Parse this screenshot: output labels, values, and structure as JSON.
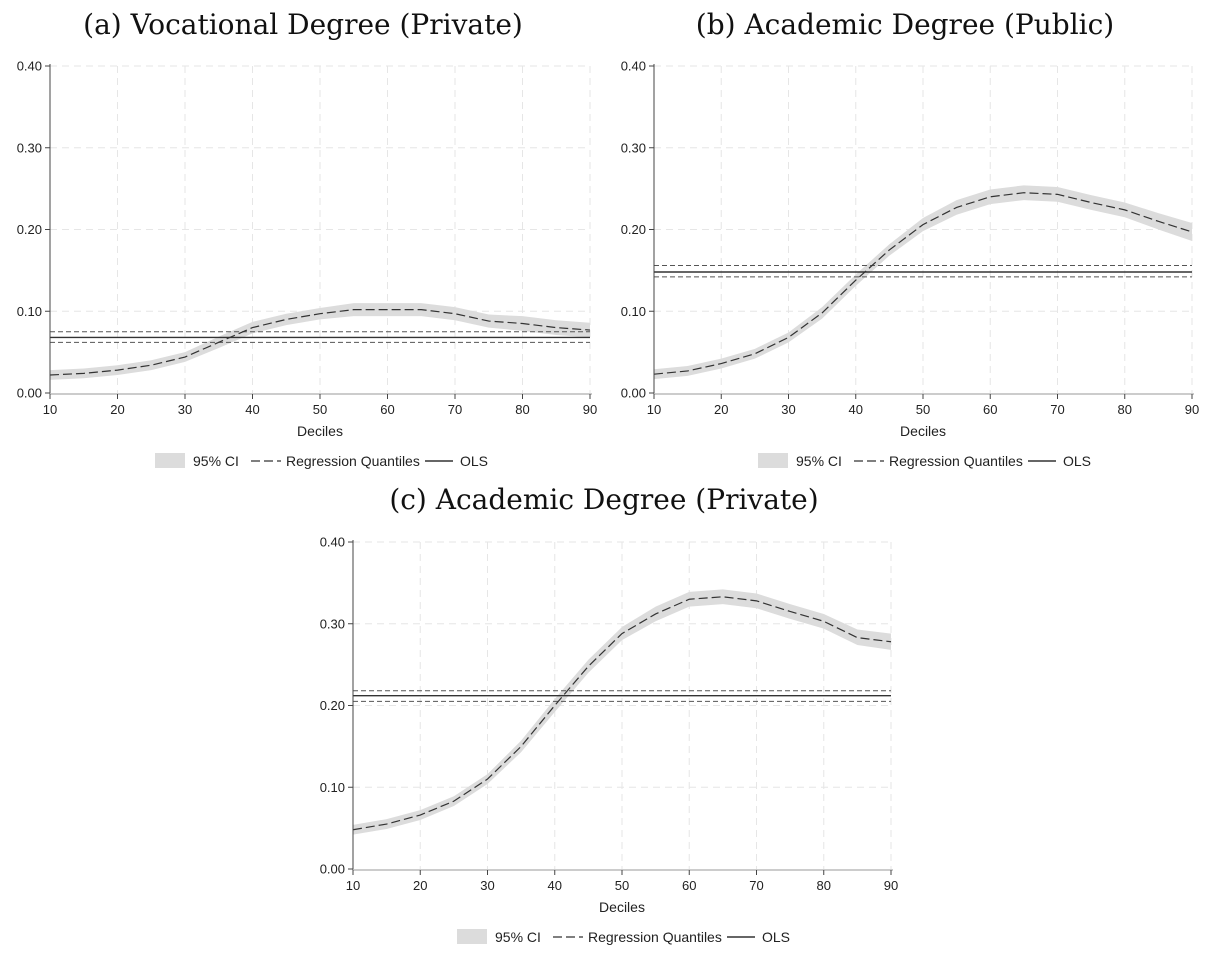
{
  "chart_data": [
    {
      "type": "line",
      "title": "(a) Vocational Degree (Private)",
      "xlabel": "Deciles",
      "ylabel": "",
      "xlim": [
        10,
        90
      ],
      "ylim": [
        0,
        0.4
      ],
      "xticks": [
        "10",
        "20",
        "30",
        "40",
        "50",
        "60",
        "70",
        "80",
        "90"
      ],
      "yticks": [
        "0.00",
        "0.10",
        "0.20",
        "0.30",
        "0.40"
      ],
      "grid": true,
      "legend": {
        "placement": "bottom",
        "entries": [
          "95% CI",
          "Regression Quantiles",
          "OLS"
        ]
      },
      "x": [
        10,
        15,
        20,
        25,
        30,
        35,
        40,
        45,
        50,
        55,
        60,
        65,
        70,
        75,
        80,
        85,
        90
      ],
      "series": [
        {
          "name": "Regression Quantiles",
          "values": [
            0.022,
            0.024,
            0.028,
            0.034,
            0.044,
            0.062,
            0.08,
            0.09,
            0.097,
            0.102,
            0.102,
            0.102,
            0.097,
            0.088,
            0.085,
            0.08,
            0.077
          ],
          "ci_low": [
            0.016,
            0.018,
            0.022,
            0.028,
            0.038,
            0.055,
            0.073,
            0.083,
            0.09,
            0.094,
            0.094,
            0.094,
            0.089,
            0.08,
            0.076,
            0.071,
            0.068
          ],
          "ci_high": [
            0.028,
            0.03,
            0.034,
            0.04,
            0.05,
            0.069,
            0.087,
            0.097,
            0.104,
            0.11,
            0.11,
            0.11,
            0.105,
            0.096,
            0.094,
            0.089,
            0.086
          ]
        },
        {
          "name": "OLS",
          "value": 0.068,
          "ci": [
            0.062,
            0.075
          ]
        }
      ]
    },
    {
      "type": "line",
      "title": "(b) Academic Degree (Public)",
      "xlabel": "Deciles",
      "ylabel": "",
      "xlim": [
        10,
        90
      ],
      "ylim": [
        0,
        0.4
      ],
      "xticks": [
        "10",
        "20",
        "30",
        "40",
        "50",
        "60",
        "70",
        "80",
        "90"
      ],
      "yticks": [
        "0.00",
        "0.10",
        "0.20",
        "0.30",
        "0.40"
      ],
      "grid": true,
      "legend": {
        "placement": "bottom",
        "entries": [
          "95% CI",
          "Regression Quantiles",
          "OLS"
        ]
      },
      "x": [
        10,
        15,
        20,
        25,
        30,
        35,
        40,
        45,
        50,
        55,
        60,
        65,
        70,
        75,
        80,
        85,
        90
      ],
      "series": [
        {
          "name": "Regression Quantiles",
          "values": [
            0.023,
            0.027,
            0.036,
            0.048,
            0.068,
            0.098,
            0.138,
            0.175,
            0.206,
            0.227,
            0.24,
            0.245,
            0.243,
            0.233,
            0.224,
            0.21,
            0.197
          ],
          "ci_low": [
            0.017,
            0.021,
            0.03,
            0.042,
            0.062,
            0.091,
            0.131,
            0.168,
            0.198,
            0.218,
            0.231,
            0.236,
            0.234,
            0.224,
            0.215,
            0.2,
            0.186
          ],
          "ci_high": [
            0.029,
            0.033,
            0.042,
            0.054,
            0.074,
            0.105,
            0.145,
            0.182,
            0.214,
            0.236,
            0.249,
            0.254,
            0.252,
            0.242,
            0.233,
            0.22,
            0.208
          ]
        },
        {
          "name": "OLS",
          "value": 0.148,
          "ci": [
            0.142,
            0.156
          ]
        }
      ]
    },
    {
      "type": "line",
      "title": "(c) Academic Degree (Private)",
      "xlabel": "Deciles",
      "ylabel": "",
      "xlim": [
        10,
        90
      ],
      "ylim": [
        0,
        0.4
      ],
      "xticks": [
        "10",
        "20",
        "30",
        "40",
        "50",
        "60",
        "70",
        "80",
        "90"
      ],
      "yticks": [
        "0.00",
        "0.10",
        "0.20",
        "0.30",
        "0.40"
      ],
      "grid": true,
      "legend": {
        "placement": "bottom",
        "entries": [
          "95% CI",
          "Regression Quantiles",
          "OLS"
        ]
      },
      "x": [
        10,
        15,
        20,
        25,
        30,
        35,
        40,
        45,
        50,
        55,
        60,
        65,
        70,
        75,
        80,
        85,
        90
      ],
      "series": [
        {
          "name": "Regression Quantiles",
          "values": [
            0.048,
            0.055,
            0.066,
            0.083,
            0.11,
            0.15,
            0.2,
            0.248,
            0.288,
            0.312,
            0.33,
            0.333,
            0.328,
            0.315,
            0.303,
            0.283,
            0.278
          ],
          "ci_low": [
            0.042,
            0.049,
            0.06,
            0.077,
            0.104,
            0.143,
            0.192,
            0.24,
            0.28,
            0.303,
            0.321,
            0.324,
            0.319,
            0.306,
            0.294,
            0.274,
            0.268
          ],
          "ci_high": [
            0.054,
            0.061,
            0.072,
            0.089,
            0.116,
            0.157,
            0.208,
            0.256,
            0.296,
            0.321,
            0.339,
            0.342,
            0.337,
            0.324,
            0.312,
            0.293,
            0.288
          ]
        },
        {
          "name": "OLS",
          "value": 0.212,
          "ci": [
            0.205,
            0.218
          ]
        }
      ]
    }
  ]
}
